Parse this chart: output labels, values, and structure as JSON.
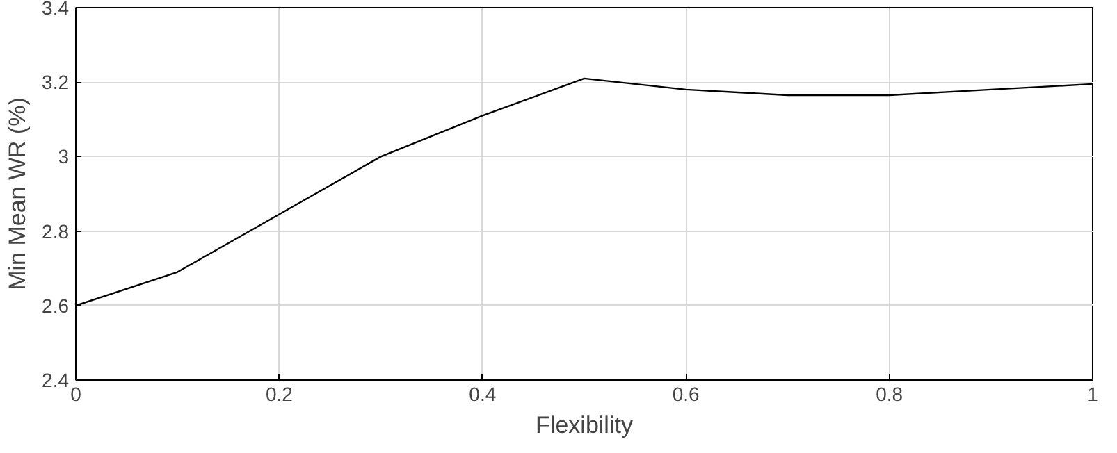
{
  "chart_data": {
    "type": "line",
    "xlabel": "Flexibility",
    "ylabel": "Min Mean WR (%)",
    "x": [
      0,
      0.1,
      0.2,
      0.3,
      0.4,
      0.5,
      0.6,
      0.7,
      0.8,
      0.9,
      1
    ],
    "series": [
      {
        "color": "#000000",
        "values": [
          2.6,
          2.69,
          2.845,
          3.0,
          3.11,
          3.21,
          3.18,
          3.165,
          3.165,
          3.18,
          3.195
        ]
      }
    ],
    "xlim": [
      0,
      1
    ],
    "ylim": [
      2.4,
      3.4
    ],
    "xticks": [
      0,
      0.2,
      0.4,
      0.6,
      0.8,
      1
    ],
    "yticks": [
      2.4,
      2.6,
      2.8,
      3,
      3.2,
      3.4
    ],
    "grid": true,
    "marker": "none",
    "line_style": "solid"
  }
}
